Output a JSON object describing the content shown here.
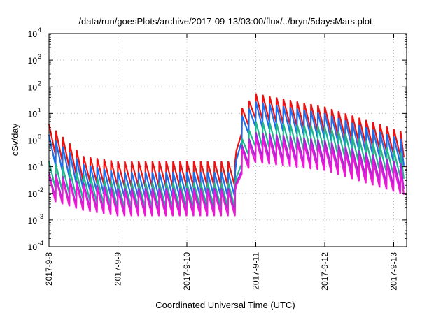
{
  "chart_data": {
    "type": "line",
    "title": "/data/run/goesPlots/archive/2017-09-13/03:00/flux/../bryn/5daysMars.plot",
    "xlabel": "Coordinated Universal Time (UTC)",
    "ylabel": "cSv/day",
    "x_tick_labels": [
      "2017-9-8",
      "2017-9-9",
      "2017-9-10",
      "2017-9-11",
      "2017-9-12",
      "2017-9-13"
    ],
    "y_tick_exponents": [
      "-4",
      "-3",
      "-2",
      "-1",
      "0",
      "1",
      "2",
      "3",
      "4"
    ],
    "y_scale": "log",
    "y_range": [
      0.0001,
      10000
    ],
    "x_range_days": [
      0,
      5.15
    ],
    "grid": true,
    "legend": "none",
    "sawtooth_period_days": 0.1,
    "event_onset_day": 2.72,
    "series": [
      {
        "color": "#ee1111",
        "peaks_log10": [
          [
            0,
            0.6
          ],
          [
            0.5,
            -0.6
          ],
          [
            1.0,
            -0.8
          ],
          [
            2.7,
            -0.8
          ],
          [
            2.72,
            1.0
          ],
          [
            3.0,
            1.75
          ],
          [
            4.0,
            1.25
          ],
          [
            5.15,
            0.3
          ]
        ]
      },
      {
        "color": "#1a6fee",
        "peaks_log10": [
          [
            0,
            0.2
          ],
          [
            0.5,
            -0.9
          ],
          [
            1.0,
            -1.2
          ],
          [
            2.7,
            -1.2
          ],
          [
            2.72,
            0.7
          ],
          [
            3.0,
            1.45
          ],
          [
            4.0,
            1.0
          ],
          [
            5.15,
            0.0
          ]
        ]
      },
      {
        "color": "#1fb58f",
        "peaks_log10": [
          [
            0,
            -0.8
          ],
          [
            0.5,
            -1.3
          ],
          [
            1.0,
            -1.6
          ],
          [
            2.7,
            -1.6
          ],
          [
            2.72,
            -0.2
          ],
          [
            3.0,
            0.7
          ],
          [
            4.0,
            0.5
          ],
          [
            5.15,
            -0.5
          ]
        ]
      },
      {
        "color": "#9a2bd6",
        "peaks_log10": [
          [
            0,
            -1.2
          ],
          [
            0.5,
            -1.6
          ],
          [
            1.0,
            -1.8
          ],
          [
            2.7,
            -1.8
          ],
          [
            2.72,
            -0.4
          ],
          [
            3.0,
            0.3
          ],
          [
            4.0,
            0.0
          ],
          [
            5.15,
            -0.9
          ]
        ]
      },
      {
        "color": "#ee18d6",
        "peaks_log10": [
          [
            0,
            -1.3
          ],
          [
            0.5,
            -1.7
          ],
          [
            1.0,
            -1.9
          ],
          [
            2.7,
            -1.9
          ],
          [
            2.72,
            -0.5
          ],
          [
            3.0,
            0.1
          ],
          [
            4.0,
            -0.2
          ],
          [
            5.15,
            -1.1
          ]
        ]
      }
    ]
  }
}
